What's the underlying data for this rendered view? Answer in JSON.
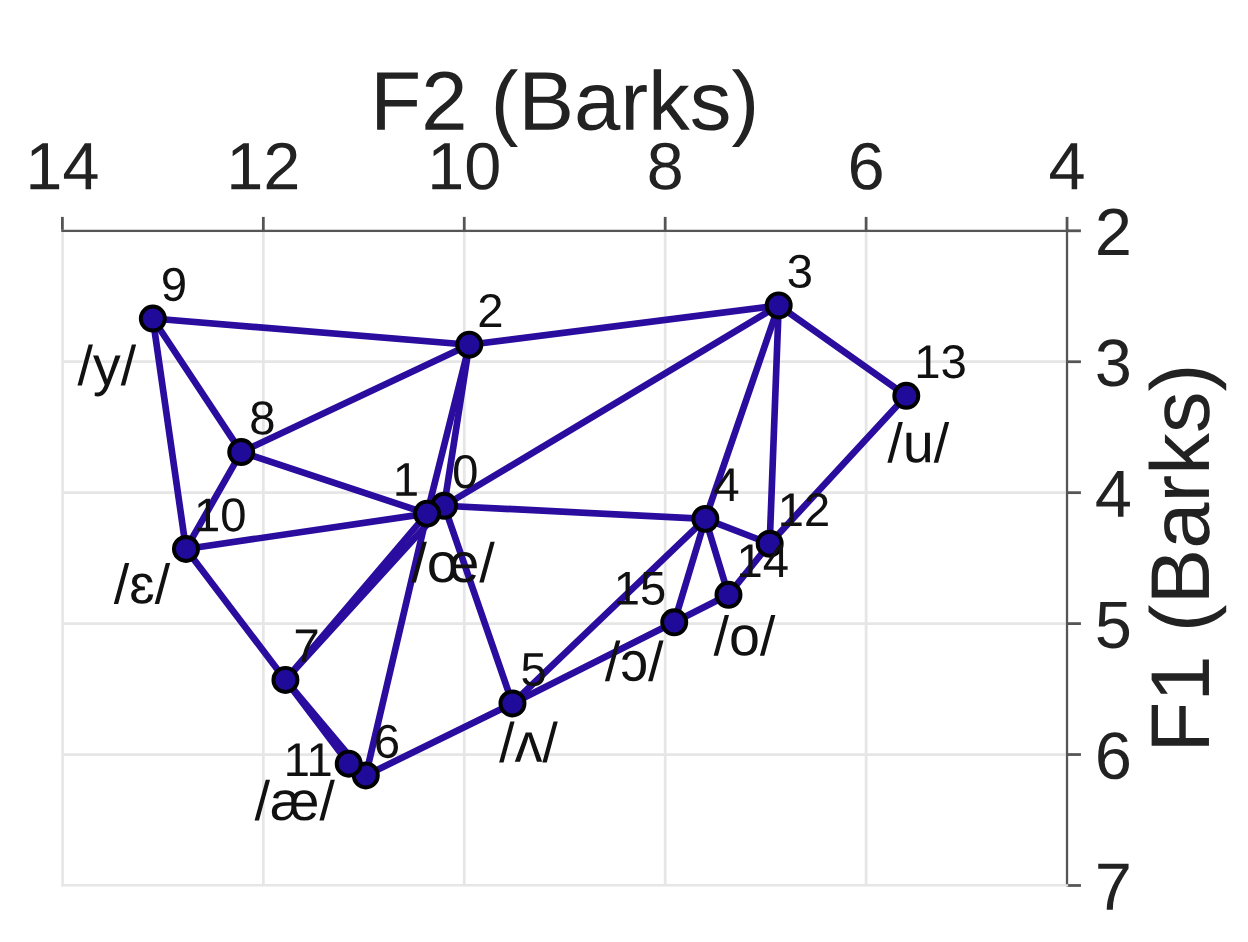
{
  "chart_data": {
    "type": "scatter",
    "xlabel": "F2 (Barks)",
    "ylabel": "F1 (Barks)",
    "xlim": [
      14,
      4
    ],
    "xticks": [
      14,
      12,
      10,
      8,
      6,
      4
    ],
    "ylim": [
      7,
      2
    ],
    "yticks": [
      2,
      3,
      4,
      5,
      6,
      7
    ],
    "grid": true,
    "series": [
      {
        "type": "line",
        "color": "#2a0c9e",
        "x": [
          13.1,
          9.95
        ],
        "values": [
          2.67,
          2.87
        ]
      },
      {
        "type": "line",
        "color": "#2a0c9e",
        "x": [
          13.1,
          12.22
        ],
        "values": [
          2.67,
          3.69
        ]
      },
      {
        "type": "line",
        "color": "#2a0c9e",
        "x": [
          13.1,
          12.77
        ],
        "values": [
          2.67,
          4.43
        ]
      },
      {
        "type": "line",
        "color": "#2a0c9e",
        "x": [
          9.95,
          6.87
        ],
        "values": [
          2.87,
          2.57
        ]
      },
      {
        "type": "line",
        "color": "#2a0c9e",
        "x": [
          9.95,
          12.22
        ],
        "values": [
          2.87,
          3.69
        ]
      },
      {
        "type": "line",
        "color": "#2a0c9e",
        "x": [
          9.95,
          10.2
        ],
        "values": [
          2.87,
          4.1
        ]
      },
      {
        "type": "line",
        "color": "#2a0c9e",
        "x": [
          9.95,
          10.37
        ],
        "values": [
          2.87,
          4.16
        ]
      },
      {
        "type": "line",
        "color": "#2a0c9e",
        "x": [
          6.87,
          10.2
        ],
        "values": [
          2.57,
          4.1
        ]
      },
      {
        "type": "line",
        "color": "#2a0c9e",
        "x": [
          6.87,
          7.6
        ],
        "values": [
          2.57,
          4.2
        ]
      },
      {
        "type": "line",
        "color": "#2a0c9e",
        "x": [
          6.87,
          6.96
        ],
        "values": [
          2.57,
          4.39
        ]
      },
      {
        "type": "line",
        "color": "#2a0c9e",
        "x": [
          6.87,
          5.6
        ],
        "values": [
          2.57,
          3.26
        ]
      },
      {
        "type": "line",
        "color": "#2a0c9e",
        "x": [
          5.6,
          6.96
        ],
        "values": [
          3.26,
          4.39
        ]
      },
      {
        "type": "line",
        "color": "#2a0c9e",
        "x": [
          6.96,
          7.37
        ],
        "values": [
          4.39,
          4.78
        ]
      },
      {
        "type": "line",
        "color": "#2a0c9e",
        "x": [
          7.37,
          7.91
        ],
        "values": [
          4.78,
          4.99
        ]
      },
      {
        "type": "line",
        "color": "#2a0c9e",
        "x": [
          7.91,
          9.52
        ],
        "values": [
          4.99,
          5.61
        ]
      },
      {
        "type": "line",
        "color": "#2a0c9e",
        "x": [
          7.6,
          9.52
        ],
        "values": [
          4.2,
          5.61
        ]
      },
      {
        "type": "line",
        "color": "#2a0c9e",
        "x": [
          12.22,
          10.37
        ],
        "values": [
          3.69,
          4.16
        ]
      },
      {
        "type": "line",
        "color": "#2a0c9e",
        "x": [
          12.22,
          12.77
        ],
        "values": [
          3.69,
          4.43
        ]
      },
      {
        "type": "line",
        "color": "#2a0c9e",
        "x": [
          12.77,
          10.37
        ],
        "values": [
          4.43,
          4.16
        ]
      },
      {
        "type": "line",
        "color": "#2a0c9e",
        "x": [
          12.77,
          11.78
        ],
        "values": [
          4.43,
          5.43
        ]
      },
      {
        "type": "line",
        "color": "#2a0c9e",
        "x": [
          11.78,
          10.37
        ],
        "values": [
          5.43,
          4.16
        ]
      },
      {
        "type": "line",
        "color": "#2a0c9e",
        "x": [
          11.78,
          10.2
        ],
        "values": [
          5.43,
          4.1
        ]
      },
      {
        "type": "line",
        "color": "#2a0c9e",
        "x": [
          11.78,
          11.15
        ],
        "values": [
          5.43,
          6.07
        ]
      },
      {
        "type": "line",
        "color": "#2a0c9e",
        "x": [
          11.78,
          10.98
        ],
        "values": [
          5.43,
          6.16
        ]
      },
      {
        "type": "line",
        "color": "#2a0c9e",
        "x": [
          10.37,
          10.98
        ],
        "values": [
          4.16,
          6.16
        ]
      },
      {
        "type": "line",
        "color": "#2a0c9e",
        "x": [
          10.2,
          9.52
        ],
        "values": [
          4.1,
          5.61
        ]
      },
      {
        "type": "line",
        "color": "#2a0c9e",
        "x": [
          10.98,
          9.52
        ],
        "values": [
          6.16,
          5.61
        ]
      },
      {
        "type": "line",
        "color": "#2a0c9e",
        "x": [
          10.2,
          7.6
        ],
        "values": [
          4.1,
          4.2
        ]
      },
      {
        "type": "line",
        "color": "#2a0c9e",
        "x": [
          7.6,
          6.96
        ],
        "values": [
          4.2,
          4.39
        ]
      },
      {
        "type": "line",
        "color": "#2a0c9e",
        "x": [
          7.6,
          7.37
        ],
        "values": [
          4.2,
          4.78
        ]
      },
      {
        "type": "line",
        "color": "#2a0c9e",
        "x": [
          7.6,
          7.91
        ],
        "values": [
          4.2,
          4.99
        ]
      },
      {
        "color": "#200a99",
        "marker": "circle",
        "x": [
          10.2,
          10.37,
          9.95,
          6.87,
          7.6,
          9.52,
          10.98,
          11.78,
          12.22,
          13.1,
          12.77,
          11.15,
          6.96,
          5.6,
          7.37,
          7.91
        ],
        "values": [
          4.1,
          4.16,
          2.87,
          2.57,
          4.2,
          5.61,
          6.16,
          5.43,
          3.69,
          2.67,
          4.43,
          6.07,
          4.39,
          3.26,
          4.78,
          4.99
        ]
      }
    ],
    "annotations": [
      {
        "text": "0",
        "x": 10.2,
        "y": 4.1
      },
      {
        "text": "1",
        "x": 10.37,
        "y": 4.16
      },
      {
        "text": "2",
        "x": 9.95,
        "y": 2.87
      },
      {
        "text": "3",
        "x": 6.87,
        "y": 2.57
      },
      {
        "text": "4",
        "x": 7.6,
        "y": 4.2
      },
      {
        "text": "5",
        "x": 9.52,
        "y": 5.61
      },
      {
        "text": "6",
        "x": 10.98,
        "y": 6.16
      },
      {
        "text": "7",
        "x": 11.78,
        "y": 5.43
      },
      {
        "text": "8",
        "x": 12.22,
        "y": 3.69
      },
      {
        "text": "9",
        "x": 13.1,
        "y": 2.67
      },
      {
        "text": "10",
        "x": 12.77,
        "y": 4.43
      },
      {
        "text": "11",
        "x": 11.15,
        "y": 6.07
      },
      {
        "text": "12",
        "x": 6.96,
        "y": 4.39
      },
      {
        "text": "13",
        "x": 5.6,
        "y": 3.26
      },
      {
        "text": "14",
        "x": 7.37,
        "y": 4.78
      },
      {
        "text": "15",
        "x": 7.91,
        "y": 4.99
      },
      {
        "text": "/œ/",
        "x": 10.37,
        "y": 4.16
      },
      {
        "text": "/ʌ/",
        "x": 9.52,
        "y": 5.61
      },
      {
        "text": "/æ/",
        "x": 11.15,
        "y": 6.07
      },
      {
        "text": "/y/",
        "x": 13.1,
        "y": 2.67
      },
      {
        "text": "/ɛ/",
        "x": 12.77,
        "y": 4.43
      },
      {
        "text": "/u/",
        "x": 5.6,
        "y": 3.26
      },
      {
        "text": "/o/",
        "x": 7.37,
        "y": 4.78
      },
      {
        "text": "/ɔ/",
        "x": 7.91,
        "y": 4.99
      }
    ]
  }
}
